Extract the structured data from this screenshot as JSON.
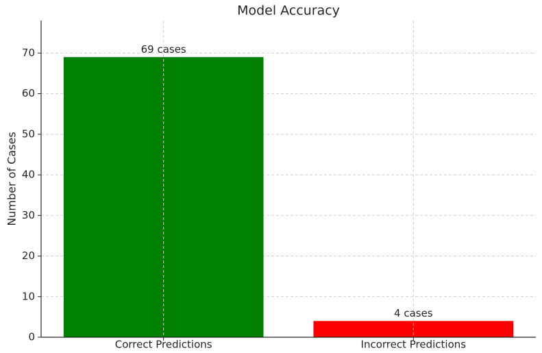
{
  "chart_data": {
    "type": "bar",
    "title": "Model Accuracy",
    "y_label": "Number of Cases",
    "categories": [
      "Correct Predictions",
      "Incorrect Predictions"
    ],
    "values": [
      69,
      4
    ],
    "value_labels": [
      "69 cases",
      "4 cases"
    ],
    "colors": [
      "#008000",
      "#ff0000"
    ],
    "ylim": [
      0,
      78
    ],
    "yticks": [
      0,
      10,
      20,
      30,
      40,
      50,
      60,
      70
    ],
    "grid": true
  }
}
